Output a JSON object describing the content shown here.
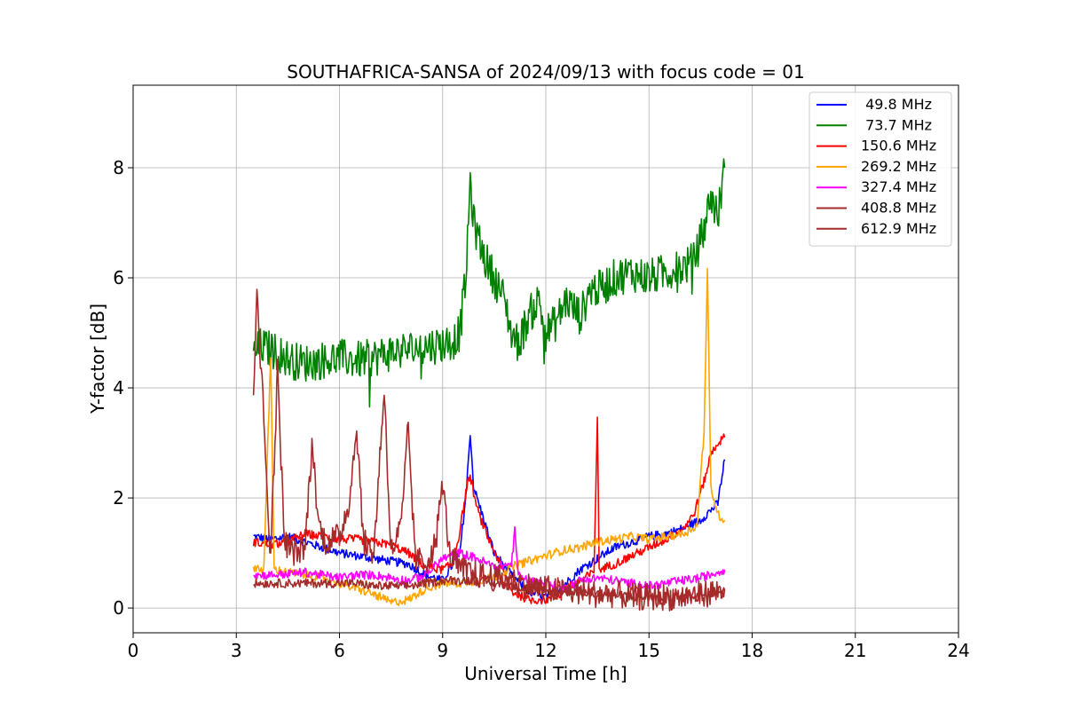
{
  "chart_data": {
    "type": "line",
    "title": "SOUTHAFRICA-SANSA of 2024/09/13 with focus code = 01",
    "xlabel": "Universal Time [h]",
    "ylabel": "Y-factor [dB]",
    "xlim": [
      0,
      24
    ],
    "ylim": [
      -0.45,
      9.5
    ],
    "xticks": [
      0,
      3,
      6,
      9,
      12,
      15,
      18,
      21,
      24
    ],
    "xtick_labels": [
      "0",
      "3",
      "6",
      "9",
      "12",
      "15",
      "18",
      "21",
      "24"
    ],
    "yticks": [
      0,
      2,
      4,
      6,
      8
    ],
    "ytick_labels": [
      "0",
      "2",
      "4",
      "6",
      "8"
    ],
    "grid": true,
    "legend_position": "top-right",
    "series": [
      {
        "name": " 49.8 MHz",
        "color": "#0000ff",
        "points": [
          [
            3.5,
            1.3
          ],
          [
            4.0,
            1.25
          ],
          [
            4.5,
            1.3
          ],
          [
            5.0,
            1.2
          ],
          [
            5.5,
            1.1
          ],
          [
            6.0,
            1.0
          ],
          [
            6.5,
            0.95
          ],
          [
            7.0,
            0.9
          ],
          [
            7.5,
            0.85
          ],
          [
            8.0,
            0.8
          ],
          [
            8.5,
            0.6
          ],
          [
            9.0,
            0.5
          ],
          [
            9.5,
            1.0
          ],
          [
            9.7,
            2.2
          ],
          [
            9.8,
            3.2
          ],
          [
            9.9,
            2.2
          ],
          [
            10.2,
            1.6
          ],
          [
            10.5,
            1.0
          ],
          [
            11.0,
            0.6
          ],
          [
            11.5,
            0.3
          ],
          [
            12.0,
            0.2
          ],
          [
            12.5,
            0.4
          ],
          [
            13.0,
            0.7
          ],
          [
            13.5,
            0.9
          ],
          [
            14.0,
            1.1
          ],
          [
            14.5,
            1.2
          ],
          [
            15.0,
            1.3
          ],
          [
            15.5,
            1.35
          ],
          [
            16.0,
            1.45
          ],
          [
            16.5,
            1.6
          ],
          [
            17.0,
            1.9
          ],
          [
            17.2,
            2.7
          ]
        ]
      },
      {
        "name": " 73.7 MHz",
        "color": "#008000",
        "points": [
          [
            3.5,
            4.6
          ],
          [
            3.7,
            4.75
          ],
          [
            4.0,
            4.7
          ],
          [
            4.3,
            4.6
          ],
          [
            4.6,
            4.5
          ],
          [
            5.0,
            4.45
          ],
          [
            5.5,
            4.5
          ],
          [
            6.0,
            4.55
          ],
          [
            6.5,
            4.5
          ],
          [
            7.0,
            4.55
          ],
          [
            7.5,
            4.65
          ],
          [
            8.0,
            4.7
          ],
          [
            8.5,
            4.75
          ],
          [
            9.0,
            4.8
          ],
          [
            9.3,
            4.85
          ],
          [
            9.5,
            5.0
          ],
          [
            9.7,
            6.2
          ],
          [
            9.8,
            7.8
          ],
          [
            9.9,
            7.0
          ],
          [
            10.2,
            6.4
          ],
          [
            10.5,
            6.0
          ],
          [
            10.8,
            5.6
          ],
          [
            11.0,
            5.0
          ],
          [
            11.2,
            4.8
          ],
          [
            11.5,
            5.3
          ],
          [
            11.8,
            5.6
          ],
          [
            12.0,
            5.0
          ],
          [
            12.3,
            5.2
          ],
          [
            12.6,
            5.6
          ],
          [
            13.0,
            5.3
          ],
          [
            13.3,
            5.8
          ],
          [
            13.6,
            5.8
          ],
          [
            14.0,
            6.0
          ],
          [
            14.5,
            6.1
          ],
          [
            15.0,
            6.0
          ],
          [
            15.5,
            6.1
          ],
          [
            16.0,
            6.2
          ],
          [
            16.3,
            6.3
          ],
          [
            16.6,
            6.9
          ],
          [
            16.8,
            7.5
          ],
          [
            17.0,
            7.1
          ],
          [
            17.2,
            8.0
          ]
        ]
      },
      {
        "name": "150.6 MHz",
        "color": "#ff0000",
        "points": [
          [
            3.5,
            1.2
          ],
          [
            4.0,
            1.15
          ],
          [
            4.5,
            1.2
          ],
          [
            5.0,
            1.35
          ],
          [
            5.5,
            1.3
          ],
          [
            6.0,
            1.25
          ],
          [
            6.5,
            1.25
          ],
          [
            7.0,
            1.2
          ],
          [
            7.5,
            1.15
          ],
          [
            8.0,
            1.0
          ],
          [
            8.5,
            0.75
          ],
          [
            9.0,
            0.7
          ],
          [
            9.3,
            0.8
          ],
          [
            9.5,
            1.4
          ],
          [
            9.7,
            2.2
          ],
          [
            9.8,
            2.4
          ],
          [
            10.0,
            1.8
          ],
          [
            10.3,
            1.3
          ],
          [
            10.6,
            0.9
          ],
          [
            11.0,
            0.3
          ],
          [
            11.5,
            0.15
          ],
          [
            12.0,
            0.15
          ],
          [
            12.3,
            0.2
          ],
          [
            12.6,
            0.35
          ],
          [
            13.0,
            0.5
          ],
          [
            13.4,
            0.65
          ],
          [
            13.5,
            3.5
          ],
          [
            13.55,
            0.7
          ],
          [
            14.0,
            0.8
          ],
          [
            14.5,
            0.95
          ],
          [
            15.0,
            1.1
          ],
          [
            15.5,
            1.25
          ],
          [
            16.0,
            1.45
          ],
          [
            16.3,
            1.7
          ],
          [
            16.6,
            2.3
          ],
          [
            16.8,
            2.8
          ],
          [
            17.0,
            3.0
          ],
          [
            17.2,
            3.1
          ]
        ]
      },
      {
        "name": "269.2 MHz",
        "color": "#ffa500",
        "points": [
          [
            3.5,
            0.75
          ],
          [
            3.8,
            0.7
          ],
          [
            4.0,
            4.6
          ],
          [
            4.1,
            0.7
          ],
          [
            4.5,
            0.65
          ],
          [
            5.0,
            0.6
          ],
          [
            5.5,
            0.55
          ],
          [
            6.0,
            0.45
          ],
          [
            6.5,
            0.35
          ],
          [
            7.0,
            0.25
          ],
          [
            7.5,
            0.1
          ],
          [
            8.0,
            0.15
          ],
          [
            8.5,
            0.35
          ],
          [
            9.0,
            0.45
          ],
          [
            9.5,
            0.45
          ],
          [
            10.0,
            0.5
          ],
          [
            10.5,
            0.55
          ],
          [
            11.0,
            0.75
          ],
          [
            11.5,
            0.85
          ],
          [
            12.0,
            0.95
          ],
          [
            12.5,
            1.05
          ],
          [
            13.0,
            1.1
          ],
          [
            13.5,
            1.2
          ],
          [
            14.0,
            1.25
          ],
          [
            14.5,
            1.3
          ],
          [
            15.0,
            1.25
          ],
          [
            15.5,
            1.3
          ],
          [
            16.0,
            1.35
          ],
          [
            16.4,
            1.5
          ],
          [
            16.6,
            3.2
          ],
          [
            16.7,
            6.1
          ],
          [
            16.8,
            2.2
          ],
          [
            17.0,
            1.7
          ],
          [
            17.2,
            1.6
          ]
        ]
      },
      {
        "name": "327.4 MHz",
        "color": "#ff00ff",
        "points": [
          [
            3.5,
            0.6
          ],
          [
            4.0,
            0.6
          ],
          [
            4.5,
            0.62
          ],
          [
            5.0,
            0.65
          ],
          [
            5.5,
            0.6
          ],
          [
            6.0,
            0.55
          ],
          [
            6.5,
            0.6
          ],
          [
            7.0,
            0.6
          ],
          [
            7.5,
            0.55
          ],
          [
            8.0,
            0.5
          ],
          [
            8.5,
            0.6
          ],
          [
            9.0,
            0.9
          ],
          [
            9.5,
            1.0
          ],
          [
            10.0,
            0.9
          ],
          [
            10.5,
            0.75
          ],
          [
            11.0,
            0.8
          ],
          [
            11.1,
            1.4
          ],
          [
            11.2,
            0.6
          ],
          [
            11.5,
            0.5
          ],
          [
            12.0,
            0.45
          ],
          [
            12.5,
            0.35
          ],
          [
            13.0,
            0.5
          ],
          [
            13.5,
            0.55
          ],
          [
            14.0,
            0.5
          ],
          [
            14.5,
            0.45
          ],
          [
            15.0,
            0.4
          ],
          [
            15.5,
            0.45
          ],
          [
            16.0,
            0.5
          ],
          [
            16.5,
            0.55
          ],
          [
            17.0,
            0.65
          ],
          [
            17.2,
            0.7
          ]
        ]
      },
      {
        "name": "408.8 MHz",
        "color": "#a52a2a",
        "points": [
          [
            3.5,
            0.45
          ],
          [
            4.0,
            0.45
          ],
          [
            4.5,
            0.45
          ],
          [
            5.0,
            0.45
          ],
          [
            5.5,
            0.45
          ],
          [
            6.0,
            0.45
          ],
          [
            6.5,
            0.45
          ],
          [
            7.0,
            0.4
          ],
          [
            7.5,
            0.4
          ],
          [
            8.0,
            0.4
          ],
          [
            8.5,
            0.45
          ],
          [
            9.0,
            0.5
          ],
          [
            9.5,
            0.5
          ],
          [
            10.0,
            0.5
          ],
          [
            10.5,
            0.45
          ],
          [
            11.0,
            0.4
          ],
          [
            11.5,
            0.35
          ],
          [
            12.0,
            0.3
          ],
          [
            12.5,
            0.3
          ],
          [
            13.0,
            0.3
          ],
          [
            13.5,
            0.25
          ],
          [
            14.0,
            0.25
          ],
          [
            14.5,
            0.2
          ],
          [
            15.0,
            0.2
          ],
          [
            15.5,
            0.2
          ],
          [
            16.0,
            0.2
          ],
          [
            16.5,
            0.25
          ],
          [
            17.0,
            0.3
          ],
          [
            17.2,
            0.3
          ]
        ]
      },
      {
        "name": "612.9 MHz",
        "color": "#a52a2a",
        "points": [
          [
            3.5,
            3.8
          ],
          [
            3.6,
            6.0
          ],
          [
            3.7,
            4.5
          ],
          [
            3.8,
            3.5
          ],
          [
            3.9,
            2.0
          ],
          [
            4.0,
            1.0
          ],
          [
            4.2,
            4.3
          ],
          [
            4.4,
            1.2
          ],
          [
            4.7,
            1.0
          ],
          [
            5.0,
            1.1
          ],
          [
            5.2,
            3.0
          ],
          [
            5.4,
            1.5
          ],
          [
            5.6,
            1.2
          ],
          [
            6.0,
            1.3
          ],
          [
            6.3,
            2.0
          ],
          [
            6.5,
            3.3
          ],
          [
            6.7,
            1.2
          ],
          [
            7.0,
            1.0
          ],
          [
            7.3,
            4.0
          ],
          [
            7.5,
            1.0
          ],
          [
            7.8,
            1.5
          ],
          [
            8.0,
            3.3
          ],
          [
            8.2,
            0.9
          ],
          [
            8.5,
            0.8
          ],
          [
            8.8,
            1.2
          ],
          [
            9.0,
            2.3
          ],
          [
            9.2,
            1.0
          ],
          [
            9.5,
            0.7
          ],
          [
            10.0,
            0.6
          ],
          [
            10.5,
            0.55
          ],
          [
            11.0,
            0.5
          ],
          [
            11.5,
            0.4
          ],
          [
            12.0,
            0.35
          ],
          [
            12.5,
            0.3
          ],
          [
            13.0,
            0.3
          ],
          [
            13.5,
            0.25
          ],
          [
            14.0,
            0.25
          ],
          [
            14.5,
            0.2
          ],
          [
            15.0,
            0.2
          ],
          [
            15.5,
            0.2
          ],
          [
            16.0,
            0.2
          ],
          [
            16.5,
            0.25
          ],
          [
            17.0,
            0.3
          ],
          [
            17.2,
            0.35
          ]
        ]
      }
    ]
  }
}
